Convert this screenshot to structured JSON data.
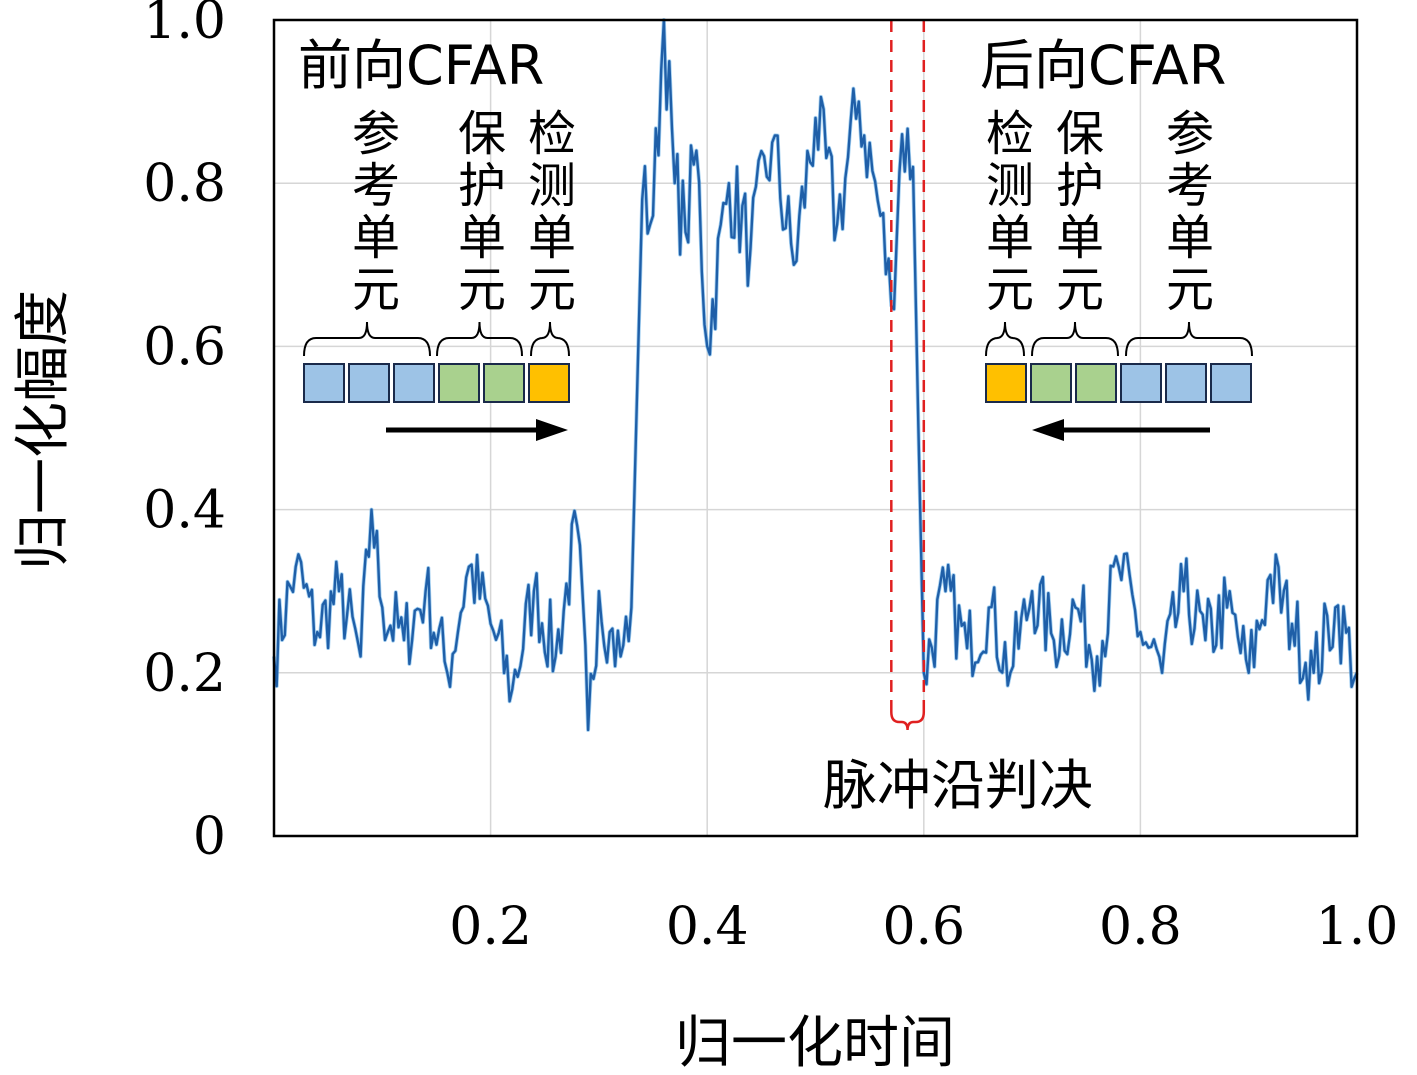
{
  "chart_data": {
    "type": "line",
    "xlabel": "归一化时间",
    "ylabel": "归一化幅度",
    "xlim": [
      0,
      1.0
    ],
    "ylim": [
      0,
      1.0
    ],
    "x_ticks": [
      "0.2",
      "0.4",
      "0.6",
      "0.8",
      "1.0"
    ],
    "y_ticks": [
      "0",
      "0.2",
      "0.4",
      "0.6",
      "0.8",
      "1.0"
    ],
    "x_tick_values": [
      0.2,
      0.4,
      0.6,
      0.8,
      1.0
    ],
    "y_tick_values": [
      0,
      0.2,
      0.4,
      0.6,
      0.8,
      1.0
    ],
    "grid": true,
    "line_color": "#1f5fa8",
    "series": [
      {
        "x": [
          0.0,
          0.02,
          0.04,
          0.06,
          0.08,
          0.09,
          0.1,
          0.12,
          0.14,
          0.16,
          0.18,
          0.2,
          0.22,
          0.24,
          0.26,
          0.28,
          0.29,
          0.3,
          0.31,
          0.32,
          0.33,
          0.34,
          0.35,
          0.36,
          0.37,
          0.38,
          0.39,
          0.4,
          0.42,
          0.44,
          0.46,
          0.48,
          0.5,
          0.52,
          0.54,
          0.56,
          0.57,
          0.58,
          0.59,
          0.595,
          0.6,
          0.62,
          0.64,
          0.66,
          0.68,
          0.7,
          0.72,
          0.74,
          0.76,
          0.78,
          0.8,
          0.82,
          0.84,
          0.86,
          0.88,
          0.9,
          0.92,
          0.94,
          0.96,
          0.98,
          1.0
        ],
        "y": [
          0.22,
          0.33,
          0.25,
          0.3,
          0.22,
          0.4,
          0.28,
          0.24,
          0.3,
          0.2,
          0.33,
          0.26,
          0.18,
          0.3,
          0.22,
          0.38,
          0.13,
          0.3,
          0.25,
          0.22,
          0.28,
          0.78,
          0.76,
          1.0,
          0.8,
          0.74,
          0.84,
          0.6,
          0.8,
          0.72,
          0.85,
          0.7,
          0.88,
          0.75,
          0.9,
          0.76,
          0.65,
          0.86,
          0.82,
          0.5,
          0.2,
          0.3,
          0.23,
          0.28,
          0.2,
          0.3,
          0.24,
          0.28,
          0.22,
          0.33,
          0.25,
          0.2,
          0.3,
          0.24,
          0.28,
          0.2,
          0.32,
          0.26,
          0.2,
          0.28,
          0.2
        ]
      }
    ],
    "annotations": {
      "forward_title": "前向CFAR",
      "backward_title": "后向CFAR",
      "ref_label": [
        "参",
        "考",
        "单",
        "元"
      ],
      "guard_label": [
        "保",
        "护",
        "单",
        "元"
      ],
      "detect_label": [
        "检",
        "测",
        "单",
        "元"
      ],
      "edge_label": "脉冲沿判决",
      "ref_color": "#9dc3e6",
      "guard_color": "#a9d18e",
      "detect_color": "#ffc000",
      "edge_line_color": "#e02020",
      "edge_x": [
        0.57,
        0.6
      ]
    }
  }
}
